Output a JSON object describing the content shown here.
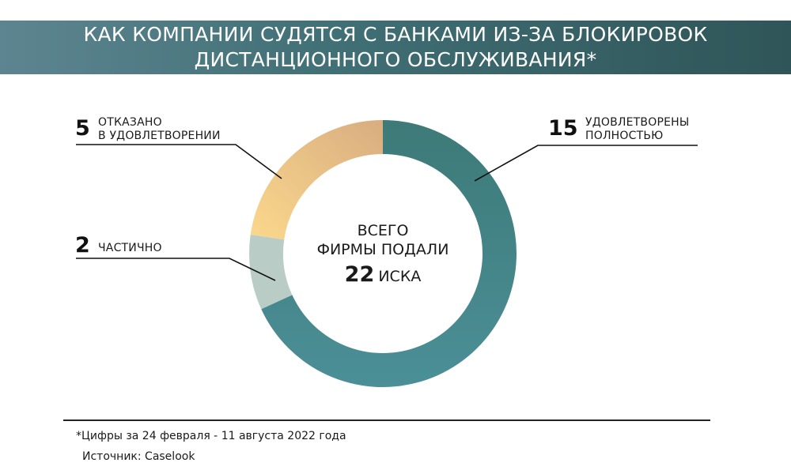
{
  "chart_data": {
    "type": "pie",
    "title_lines": [
      "КАК КОМПАНИИ СУДЯТСЯ С БАНКАМИ ИЗ-ЗА БЛОКИРОВОК",
      "ДИСТАНЦИОННОГО ОБСЛУЖИВАНИЯ*"
    ],
    "total_label_lines": [
      "ВСЕГО",
      "ФИРМЫ ПОДАЛИ"
    ],
    "total_value": 22,
    "total_unit": "ИСКА",
    "slices": [
      {
        "value": 15,
        "number": "15",
        "label_lines": [
          "УДОВЛЕТВОРЕНЫ",
          "ПОЛНОСТЬЮ"
        ],
        "color_start": "#3d7a78",
        "color_end": "#4b8f97"
      },
      {
        "value": 2,
        "number": "2",
        "label_lines": [
          "ЧАСТИЧНО"
        ],
        "color_start": "#b9cdc6",
        "color_end": "#b9cdc6"
      },
      {
        "value": 5,
        "number": "5",
        "label_lines": [
          "ОТКАЗАНО",
          "В УДОВЛЕТВОРЕНИИ"
        ],
        "color_start": "#fbd88c",
        "color_end": "#d8ad80"
      }
    ]
  },
  "footnote": {
    "period": "*Цифры за  24 февраля - 11 августа 2022 года",
    "source": "Источник: Caselook"
  }
}
